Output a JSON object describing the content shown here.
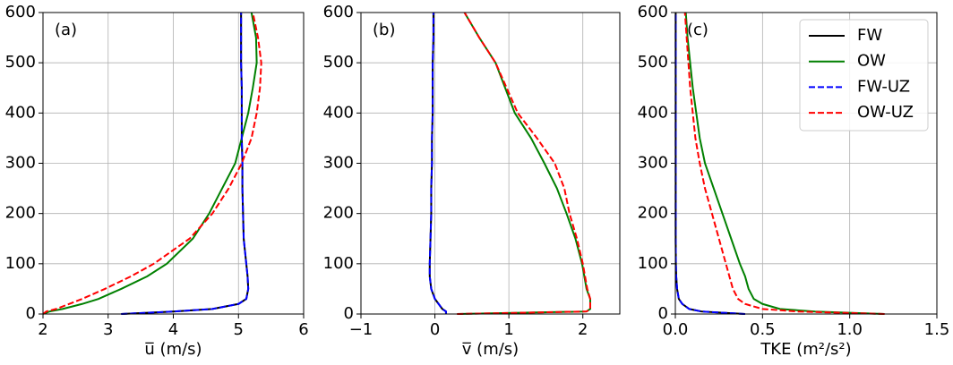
{
  "chart_data": [
    {
      "type": "line",
      "panel_label": "(a)",
      "xlabel": "u̅ (m/s)",
      "xlim": [
        2,
        6
      ],
      "xticks": [
        2,
        3,
        4,
        5,
        6
      ],
      "ylim": [
        0,
        600
      ],
      "yticks": [
        0,
        100,
        200,
        300,
        400,
        500,
        600
      ],
      "grid": true,
      "y": [
        0,
        5,
        10,
        20,
        30,
        50,
        75,
        100,
        150,
        200,
        250,
        300,
        350,
        400,
        450,
        500,
        550,
        600
      ],
      "series": [
        {
          "color": "#000000",
          "dashed": false,
          "values": [
            3.2,
            4.0,
            4.6,
            5.0,
            5.12,
            5.15,
            5.14,
            5.12,
            5.08,
            5.07,
            5.06,
            5.06,
            5.05,
            5.05,
            5.05,
            5.04,
            5.04,
            5.04
          ]
        },
        {
          "color": "#008000",
          "dashed": false,
          "values": [
            2.0,
            2.1,
            2.3,
            2.6,
            2.85,
            3.2,
            3.6,
            3.9,
            4.3,
            4.55,
            4.75,
            4.95,
            5.05,
            5.15,
            5.22,
            5.28,
            5.27,
            5.2
          ]
        },
        {
          "color": "#0000ff",
          "dashed": true,
          "values": [
            3.2,
            4.0,
            4.6,
            5.0,
            5.12,
            5.15,
            5.14,
            5.12,
            5.08,
            5.07,
            5.06,
            5.06,
            5.05,
            5.05,
            5.05,
            5.04,
            5.04,
            5.04
          ]
        },
        {
          "color": "#ff0000",
          "dashed": true,
          "values": [
            2.0,
            2.05,
            2.2,
            2.4,
            2.6,
            2.95,
            3.35,
            3.7,
            4.25,
            4.6,
            4.85,
            5.05,
            5.2,
            5.28,
            5.33,
            5.35,
            5.3,
            5.22
          ]
        }
      ]
    },
    {
      "type": "line",
      "panel_label": "(b)",
      "xlabel": "v̅ (m/s)",
      "xlim": [
        -1,
        2.5
      ],
      "xticks": [
        {
          "value": -1,
          "label": "−1"
        },
        0,
        1,
        2
      ],
      "ylim": [
        0,
        600
      ],
      "yticks": [
        0,
        100,
        200,
        300,
        400,
        500,
        600
      ],
      "grid": true,
      "y": [
        0,
        5,
        10,
        20,
        30,
        50,
        75,
        100,
        150,
        200,
        250,
        300,
        350,
        400,
        450,
        500,
        550,
        600
      ],
      "series": [
        {
          "color": "#000000",
          "dashed": false,
          "values": [
            0.15,
            0.15,
            0.1,
            0.05,
            0.0,
            -0.05,
            -0.07,
            -0.07,
            -0.06,
            -0.05,
            -0.05,
            -0.04,
            -0.04,
            -0.03,
            -0.03,
            -0.03,
            -0.02,
            -0.02
          ]
        },
        {
          "color": "#008000",
          "dashed": false,
          "values": [
            0.3,
            2.05,
            2.1,
            2.1,
            2.1,
            2.05,
            2.02,
            1.99,
            1.9,
            1.78,
            1.65,
            1.48,
            1.3,
            1.08,
            0.95,
            0.82,
            0.6,
            0.4
          ]
        },
        {
          "color": "#0000ff",
          "dashed": true,
          "values": [
            0.15,
            0.15,
            0.1,
            0.05,
            0.0,
            -0.05,
            -0.07,
            -0.07,
            -0.06,
            -0.05,
            -0.05,
            -0.04,
            -0.04,
            -0.03,
            -0.03,
            -0.03,
            -0.02,
            -0.02
          ]
        },
        {
          "color": "#ff0000",
          "dashed": true,
          "values": [
            0.3,
            2.05,
            2.1,
            2.1,
            2.1,
            2.06,
            2.03,
            2.0,
            1.92,
            1.82,
            1.75,
            1.62,
            1.38,
            1.12,
            0.97,
            0.82,
            0.6,
            0.4
          ]
        }
      ]
    },
    {
      "type": "line",
      "panel_label": "(c)",
      "xlabel": "TKE (m²/s²)",
      "xlim": [
        0,
        1.5
      ],
      "xticks": [
        {
          "value": 0,
          "label": "0.0"
        },
        0.5,
        {
          "value": 1,
          "label": "1.0"
        },
        1.5
      ],
      "ylim": [
        0,
        600
      ],
      "yticks": [
        0,
        100,
        200,
        300,
        400,
        500,
        600
      ],
      "grid": true,
      "legend": "upper right",
      "y": [
        0,
        5,
        10,
        20,
        30,
        50,
        75,
        100,
        150,
        200,
        250,
        300,
        350,
        400,
        450,
        500,
        550,
        600
      ],
      "series": [
        {
          "name": "FW",
          "color": "#000000",
          "dashed": false,
          "values": [
            0.4,
            0.15,
            0.08,
            0.04,
            0.02,
            0.01,
            0.005,
            0.003,
            0.002,
            0.002,
            0.002,
            0.002,
            0.002,
            0.002,
            0.002,
            0.002,
            0.002,
            0.002
          ]
        },
        {
          "name": "OW",
          "color": "#008000",
          "dashed": false,
          "values": [
            1.2,
            0.8,
            0.6,
            0.5,
            0.45,
            0.42,
            0.4,
            0.37,
            0.32,
            0.27,
            0.22,
            0.17,
            0.14,
            0.12,
            0.1,
            0.085,
            0.07,
            0.06
          ]
        },
        {
          "name": "FW-UZ",
          "color": "#0000ff",
          "dashed": true,
          "values": [
            0.4,
            0.15,
            0.08,
            0.04,
            0.02,
            0.01,
            0.005,
            0.003,
            0.002,
            0.002,
            0.002,
            0.002,
            0.002,
            0.002,
            0.002,
            0.002,
            0.002,
            0.002
          ]
        },
        {
          "name": "OW-UZ",
          "color": "#ff0000",
          "dashed": true,
          "values": [
            1.2,
            0.7,
            0.5,
            0.4,
            0.36,
            0.33,
            0.31,
            0.29,
            0.25,
            0.21,
            0.17,
            0.14,
            0.115,
            0.1,
            0.085,
            0.075,
            0.065,
            0.055
          ]
        }
      ]
    }
  ]
}
